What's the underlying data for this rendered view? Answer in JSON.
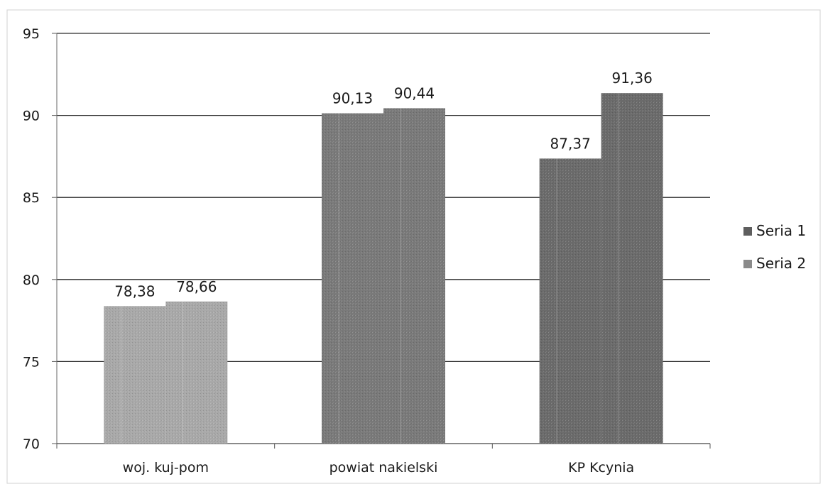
{
  "chart_data": {
    "type": "bar",
    "title": "",
    "xlabel": "",
    "ylabel": "",
    "categories": [
      "woj. kuj-pom",
      "powiat nakielski",
      "KP Kcynia"
    ],
    "series": [
      {
        "name": "Seria 1",
        "values": [
          78.38,
          90.13,
          87.37
        ],
        "labels": [
          "78,38",
          "90,13",
          "87,37"
        ]
      },
      {
        "name": "Seria 2",
        "values": [
          78.66,
          90.44,
          91.36
        ],
        "labels": [
          "78,66",
          "90,44",
          "91,36"
        ]
      }
    ],
    "ylim": [
      70,
      95
    ],
    "yticks": [
      70,
      75,
      80,
      85,
      90,
      95
    ],
    "grid": true,
    "legend_position": "right",
    "bar_colors": {
      "woj. kuj-pom": "#a9a9a9",
      "powiat nakielski": "#7a7a7a",
      "KP Kcynia": "#6b6b6b"
    },
    "legend_colors": [
      "#5e5e5e",
      "#8a8a8a"
    ]
  }
}
